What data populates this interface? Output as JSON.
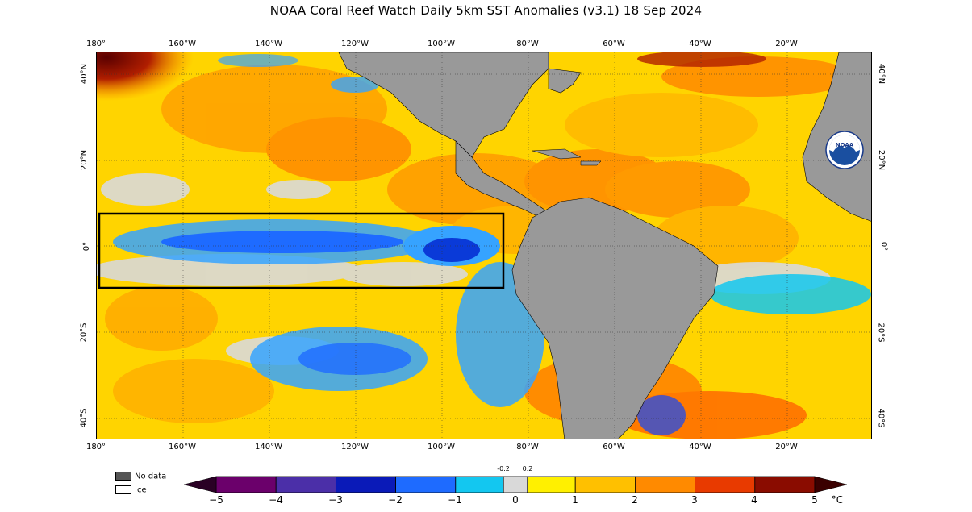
{
  "title": "NOAA Coral Reef Watch Daily 5km SST Anomalies  (v3.1)   18 Sep 2024",
  "axes": {
    "lon_labels": [
      "180°",
      "160°W",
      "140°W",
      "120°W",
      "100°W",
      "80°W",
      "60°W",
      "40°W",
      "20°W"
    ],
    "lat_labels": [
      "40°N",
      "20°N",
      "0°",
      "20°S",
      "40°S"
    ]
  },
  "map": {
    "ocean_base_color": "#ffd400",
    "land_color": "#999999",
    "selection_box_note": ""
  },
  "legend": {
    "no_data_label": "No data",
    "ice_label": "Ice",
    "no_data_color": "#555555",
    "ice_color": "#ffffff"
  },
  "colorbar": {
    "ticks": [
      "−5",
      "−4",
      "−3",
      "−2",
      "−1",
      "0",
      "1",
      "2",
      "3",
      "4",
      "5"
    ],
    "unit": "°C",
    "small_ticks": [
      "-0.2",
      "0.2"
    ],
    "segments": [
      "#3b003b",
      "#7a007a",
      "#4b2fa8",
      "#7f6ad6",
      "#0a1ab8",
      "#2b4de0",
      "#1e6bff",
      "#36a3ff",
      "#13c7f0",
      "#5cdcff",
      "#d9d9d9",
      "#d9d9d9",
      "#fff000",
      "#ffd200",
      "#ffb400",
      "#ff9a00",
      "#ff7700",
      "#ff5a00",
      "#e83a00",
      "#b01e00",
      "#8a0c00",
      "#5a0000"
    ]
  },
  "logo": {
    "text": "NOAA"
  }
}
